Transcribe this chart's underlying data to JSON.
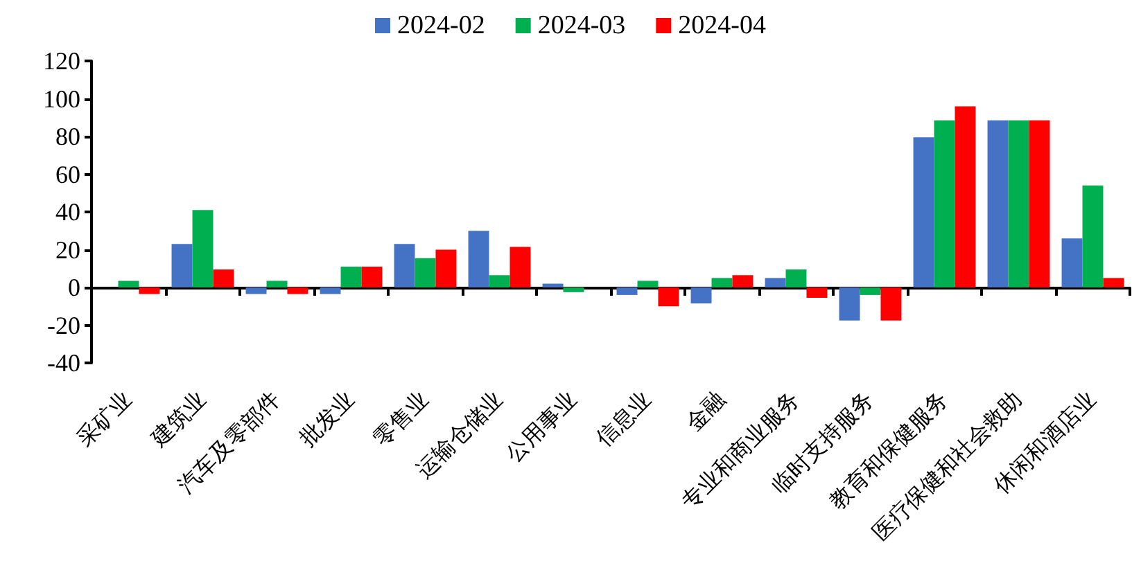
{
  "chart_data": {
    "type": "bar",
    "categories": [
      "采矿业",
      "建筑业",
      "汽车及零部件",
      "批发业",
      "零售业",
      "运输仓储业",
      "公用事业",
      "信息业",
      "金融",
      "专业和商业服务",
      "临时支持服务",
      "教育和保健服务",
      "医疗保健和社会救助",
      "休闲和酒店业"
    ],
    "series": [
      {
        "name": "2024-02",
        "color": "#4472c4",
        "values": [
          0,
          23,
          -3.5,
          -3.5,
          23,
          30,
          2,
          -4,
          -8.5,
          5,
          -17.5,
          79.5,
          88.5,
          26
        ]
      },
      {
        "name": "2024-03",
        "color": "#00b050",
        "values": [
          3.5,
          41,
          3.5,
          11,
          15.5,
          6.5,
          -2.5,
          3.5,
          5,
          9.5,
          -4,
          88.5,
          88.5,
          54
        ]
      },
      {
        "name": "2024-04",
        "color": "#ff0000",
        "values": [
          -3.5,
          9.5,
          -3.5,
          11,
          20,
          21.5,
          0,
          -10,
          6.5,
          -5.5,
          -17.5,
          96,
          88.5,
          5
        ]
      }
    ],
    "ylim": [
      -40,
      120
    ],
    "yticks": [
      -40,
      -20,
      0,
      20,
      40,
      60,
      80,
      100,
      120
    ],
    "legend": "top"
  }
}
